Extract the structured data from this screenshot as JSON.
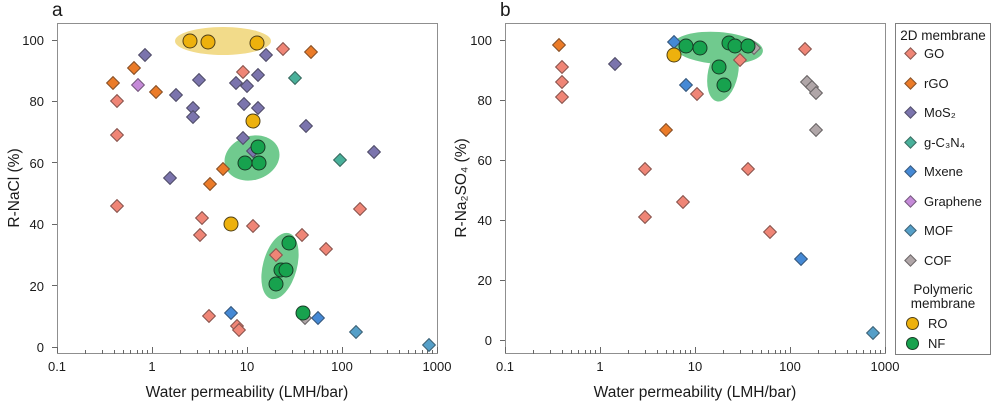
{
  "legend": {
    "group_2d_title": "2D membrane",
    "group_polymer_title": "Polymeric membrane",
    "items_2d": [
      {
        "label": "GO",
        "marker": "diamond",
        "color": "#ef8576"
      },
      {
        "label": "rGO",
        "marker": "diamond",
        "color": "#eb7b28"
      },
      {
        "label": "MoS₂",
        "marker": "diamond",
        "color": "#7b74ad"
      },
      {
        "label": "g-C₃N₄",
        "marker": "diamond",
        "color": "#49b09a"
      },
      {
        "label": "Mxene",
        "marker": "diamond",
        "color": "#4589d5"
      },
      {
        "label": "Graphene",
        "marker": "diamond",
        "color": "#c58ad8"
      },
      {
        "label": "MOF",
        "marker": "diamond",
        "color": "#559fc8"
      },
      {
        "label": "COF",
        "marker": "diamond",
        "color": "#b0a6a8"
      }
    ],
    "items_polymer": [
      {
        "label": "RO",
        "marker": "circle",
        "color": "#edb10d"
      },
      {
        "label": "NF",
        "marker": "circle",
        "color": "#17a24e"
      }
    ]
  },
  "chart_data": [
    {
      "panel": "a",
      "type": "scatter",
      "xscale": "log",
      "xlabel": "Water permeability (LMH/bar)",
      "ylabel": "R-NaCl (%)",
      "xlim": [
        0.1,
        1000
      ],
      "ylim": [
        0,
        100
      ],
      "xticks": [
        "0.1",
        "1",
        "10",
        "100",
        "1000"
      ],
      "yticks": [
        0,
        20,
        40,
        60,
        80,
        100
      ],
      "series": [
        {
          "name": "GO",
          "marker": "diamond",
          "color": "#ef8576",
          "points": [
            [
              0.43,
              80
            ],
            [
              0.43,
              69
            ],
            [
              0.43,
              46
            ],
            [
              9,
              89.5
            ],
            [
              24,
              97
            ],
            [
              3.4,
              42
            ],
            [
              11.5,
              39.5
            ],
            [
              3.2,
              36.5
            ],
            [
              20,
              30
            ],
            [
              38,
              36.5
            ],
            [
              68,
              32
            ],
            [
              155,
              45
            ],
            [
              4,
              10
            ],
            [
              7.9,
              7
            ],
            [
              8.3,
              5.5
            ]
          ]
        },
        {
          "name": "rGO",
          "marker": "diamond",
          "color": "#eb7b28",
          "points": [
            [
              0.64,
              91
            ],
            [
              0.39,
              86
            ],
            [
              1.1,
              83
            ],
            [
              47,
              96
            ],
            [
              5.6,
              58
            ],
            [
              4.1,
              53
            ]
          ]
        },
        {
          "name": "MoS₂",
          "marker": "diamond",
          "color": "#7b74ad",
          "points": [
            [
              0.85,
              95
            ],
            [
              16,
              95
            ],
            [
              13,
              88.5
            ],
            [
              3.1,
              87
            ],
            [
              7.7,
              86
            ],
            [
              10,
              85
            ],
            [
              1.8,
              82
            ],
            [
              9.3,
              79
            ],
            [
              13,
              78
            ],
            [
              2.7,
              78
            ],
            [
              2.7,
              75
            ],
            [
              42,
              72
            ],
            [
              9,
              68
            ],
            [
              11.5,
              64
            ],
            [
              215,
              63.5
            ],
            [
              1.55,
              55
            ]
          ]
        },
        {
          "name": "g-C₃N₄",
          "marker": "diamond",
          "color": "#49b09a",
          "points": [
            [
              32,
              87.5
            ],
            [
              96,
              61
            ]
          ]
        },
        {
          "name": "Mxene",
          "marker": "diamond",
          "color": "#4589d5",
          "points": [
            [
              6.8,
              11
            ],
            [
              56,
              9.5
            ]
          ]
        },
        {
          "name": "Graphene",
          "marker": "diamond",
          "color": "#c58ad8",
          "points": [
            [
              0.72,
              85.5
            ]
          ]
        },
        {
          "name": "MOF",
          "marker": "diamond",
          "color": "#559fc8",
          "points": [
            [
              140,
              5
            ],
            [
              830,
              0.5
            ]
          ]
        },
        {
          "name": "COF",
          "marker": "diamond",
          "color": "#b0a6a8",
          "points": [
            [
              41,
              9.5
            ]
          ]
        },
        {
          "name": "RO",
          "marker": "circle",
          "color": "#edb10d",
          "points": [
            [
              2.5,
              99.8
            ],
            [
              3.9,
              99.5
            ],
            [
              12.7,
              99
            ],
            [
              11.5,
              73.5
            ],
            [
              6.8,
              40
            ]
          ]
        },
        {
          "name": "NF",
          "marker": "circle",
          "color": "#17a24e",
          "points": [
            [
              13,
              65
            ],
            [
              9.5,
              60
            ],
            [
              13.5,
              60
            ],
            [
              28,
              34
            ],
            [
              23,
              25
            ],
            [
              26,
              25
            ],
            [
              20,
              20.5
            ],
            [
              38.6,
              11
            ]
          ]
        }
      ],
      "highlights": [
        {
          "shape": "ellipse",
          "x": 5.6,
          "y": 99.7,
          "rx": 48,
          "ry": 14,
          "rot": 0,
          "color": "#f2db8a"
        },
        {
          "shape": "ellipse",
          "x": 11.4,
          "y": 61.5,
          "rx": 28,
          "ry": 22,
          "rot": -18,
          "color": "#70ca8e"
        },
        {
          "shape": "ellipse",
          "x": 22,
          "y": 26.5,
          "rx": 17,
          "ry": 34,
          "rot": 15,
          "color": "#70ca8e"
        }
      ]
    },
    {
      "panel": "b",
      "type": "scatter",
      "xscale": "log",
      "xlabel": "Water permeability (LMH/bar)",
      "ylabel": "R-Na₂SO₄ (%)",
      "xlim": [
        0.1,
        1000
      ],
      "ylim": [
        0,
        100
      ],
      "xticks": [
        "0.1",
        "1",
        "10",
        "100",
        "1000"
      ],
      "yticks": [
        0,
        20,
        40,
        60,
        80,
        100
      ],
      "series": [
        {
          "name": "GO",
          "marker": "diamond",
          "color": "#ef8576",
          "points": [
            [
              0.4,
              91
            ],
            [
              0.4,
              86
            ],
            [
              0.4,
              81
            ],
            [
              30,
              93.5
            ],
            [
              10.5,
              82
            ],
            [
              145,
              97
            ],
            [
              3,
              57
            ],
            [
              36,
              57
            ],
            [
              7.5,
              46
            ],
            [
              3,
              41
            ],
            [
              62,
              36
            ]
          ]
        },
        {
          "name": "rGO",
          "marker": "diamond",
          "color": "#eb7b28",
          "points": [
            [
              0.37,
              98.5
            ],
            [
              5,
              70
            ]
          ]
        },
        {
          "name": "MoS₂",
          "marker": "diamond",
          "color": "#7b74ad",
          "points": [
            [
              1.45,
              92
            ]
          ]
        },
        {
          "name": "Mxene",
          "marker": "diamond",
          "color": "#4589d5",
          "points": [
            [
              6,
              99.5
            ],
            [
              8,
              85
            ],
            [
              130,
              27
            ]
          ]
        },
        {
          "name": "MOF",
          "marker": "diamond",
          "color": "#559fc8",
          "points": [
            [
              750,
              2.5
            ]
          ]
        },
        {
          "name": "COF",
          "marker": "diamond",
          "color": "#b0a6a8",
          "points": [
            [
              41.5,
              97.3
            ],
            [
              150,
              86
            ],
            [
              170,
              84.5
            ],
            [
              190,
              82.5
            ],
            [
              190,
              70
            ]
          ]
        },
        {
          "name": "RO",
          "marker": "circle",
          "color": "#edb10d",
          "points": [
            [
              6,
              95
            ]
          ]
        },
        {
          "name": "NF",
          "marker": "circle",
          "color": "#17a24e",
          "points": [
            [
              8,
              98
            ],
            [
              11.3,
              97.5
            ],
            [
              23,
              99
            ],
            [
              26.5,
              98
            ],
            [
              36,
              98
            ],
            [
              18,
              91
            ],
            [
              20,
              85
            ]
          ]
        }
      ],
      "highlights": [
        {
          "shape": "ellipse",
          "x": 17.5,
          "y": 97.5,
          "rx": 45,
          "ry": 16,
          "rot": 4,
          "color": "#70ca8e"
        },
        {
          "shape": "ellipse",
          "x": 19.5,
          "y": 89,
          "rx": 15,
          "ry": 29,
          "rot": 12,
          "color": "#70ca8e"
        }
      ]
    }
  ]
}
